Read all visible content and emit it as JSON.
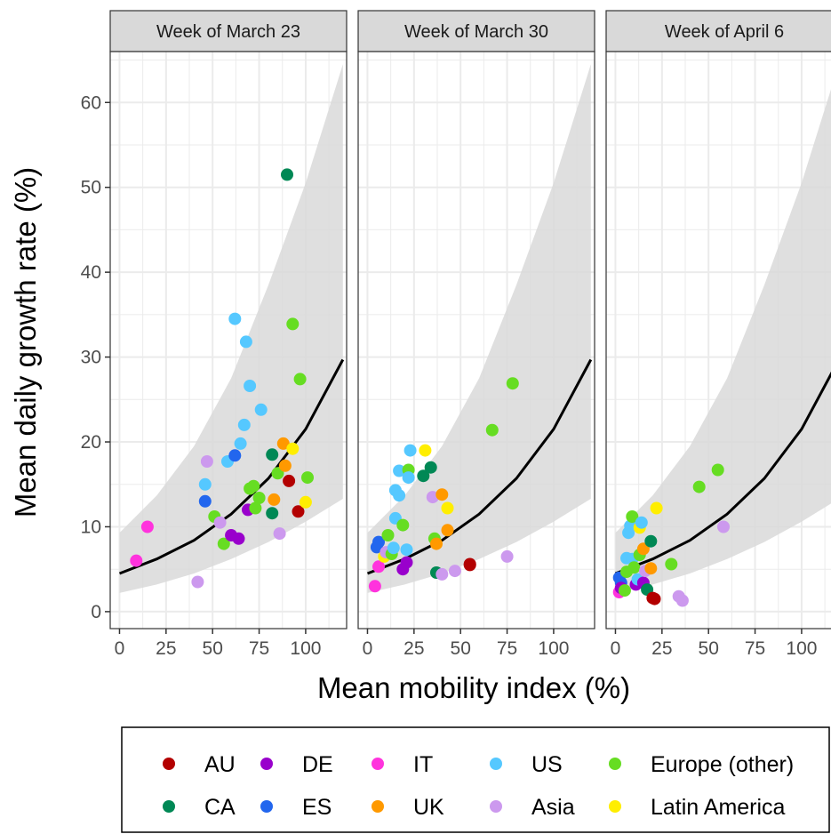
{
  "chart_data": {
    "type": "scatter",
    "xlabel": "Mean mobility index (%)",
    "ylabel": "Mean daily growth rate (%)",
    "xlim": [
      -5,
      122
    ],
    "ylim": [
      -2,
      66
    ],
    "x_ticks": [
      0,
      25,
      50,
      75,
      100
    ],
    "y_ticks": [
      0,
      10,
      20,
      30,
      40,
      50,
      60
    ],
    "grid": true,
    "legend_position": "bottom",
    "fit_curve": {
      "x": [
        0,
        20,
        40,
        60,
        80,
        100,
        120
      ],
      "y": [
        4.5,
        6.2,
        8.4,
        11.5,
        15.7,
        21.5,
        29.7
      ],
      "lower": [
        2.2,
        3.2,
        4.5,
        6.2,
        8.2,
        10.6,
        13.3
      ],
      "upper": [
        9.3,
        13.7,
        19.5,
        27.5,
        38.5,
        50.5,
        64.5
      ]
    },
    "facets": [
      {
        "title": "Week of March 23",
        "points": [
          {
            "g": "IT",
            "x": 9,
            "y": 6
          },
          {
            "g": "IT",
            "x": 15,
            "y": 10
          },
          {
            "g": "Asia",
            "x": 42,
            "y": 3.5
          },
          {
            "g": "US",
            "x": 46,
            "y": 15
          },
          {
            "g": "Asia",
            "x": 47,
            "y": 17.7
          },
          {
            "g": "ES",
            "x": 46,
            "y": 13
          },
          {
            "g": "Europe (other)",
            "x": 51,
            "y": 11.2
          },
          {
            "g": "Asia",
            "x": 54,
            "y": 10.5
          },
          {
            "g": "Europe (other)",
            "x": 56,
            "y": 8
          },
          {
            "g": "US",
            "x": 58,
            "y": 17.7
          },
          {
            "g": "DE",
            "x": 60,
            "y": 9
          },
          {
            "g": "DE",
            "x": 64,
            "y": 8.6
          },
          {
            "g": "ES",
            "x": 62,
            "y": 18.4
          },
          {
            "g": "US",
            "x": 62,
            "y": 34.5
          },
          {
            "g": "US",
            "x": 65,
            "y": 19.8
          },
          {
            "g": "US",
            "x": 67,
            "y": 22
          },
          {
            "g": "US",
            "x": 68,
            "y": 31.8
          },
          {
            "g": "US",
            "x": 70,
            "y": 26.6
          },
          {
            "g": "DE",
            "x": 69,
            "y": 12
          },
          {
            "g": "Europe (other)",
            "x": 70,
            "y": 14.5
          },
          {
            "g": "Europe (other)",
            "x": 72,
            "y": 14.8
          },
          {
            "g": "Europe (other)",
            "x": 73,
            "y": 12.2
          },
          {
            "g": "Europe (other)",
            "x": 75,
            "y": 13.4
          },
          {
            "g": "US",
            "x": 76,
            "y": 23.8
          },
          {
            "g": "CA",
            "x": 82,
            "y": 11.6
          },
          {
            "g": "CA",
            "x": 82,
            "y": 18.5
          },
          {
            "g": "UK",
            "x": 83,
            "y": 13.2
          },
          {
            "g": "Europe (other)",
            "x": 85,
            "y": 16.3
          },
          {
            "g": "Asia",
            "x": 86,
            "y": 9.2
          },
          {
            "g": "UK",
            "x": 88,
            "y": 19.8
          },
          {
            "g": "UK",
            "x": 89,
            "y": 17.2
          },
          {
            "g": "CA",
            "x": 90,
            "y": 51.5
          },
          {
            "g": "AU",
            "x": 91,
            "y": 15.4
          },
          {
            "g": "Europe (other)",
            "x": 93,
            "y": 33.9
          },
          {
            "g": "Latin America",
            "x": 93,
            "y": 19.2
          },
          {
            "g": "AU",
            "x": 96,
            "y": 11.8
          },
          {
            "g": "Europe (other)",
            "x": 97,
            "y": 27.4
          },
          {
            "g": "Latin America",
            "x": 100,
            "y": 12.9
          },
          {
            "g": "Europe (other)",
            "x": 101,
            "y": 15.8
          }
        ]
      },
      {
        "title": "Week of March 30",
        "points": [
          {
            "g": "IT",
            "x": 4,
            "y": 3
          },
          {
            "g": "IT",
            "x": 6,
            "y": 5.3
          },
          {
            "g": "ES",
            "x": 5,
            "y": 7.6
          },
          {
            "g": "ES",
            "x": 6,
            "y": 8.2
          },
          {
            "g": "Latin America",
            "x": 9,
            "y": 6.5
          },
          {
            "g": "Asia",
            "x": 10,
            "y": 7
          },
          {
            "g": "Europe (other)",
            "x": 11,
            "y": 9
          },
          {
            "g": "Europe (other)",
            "x": 13,
            "y": 6.8
          },
          {
            "g": "US",
            "x": 14,
            "y": 7.5
          },
          {
            "g": "US",
            "x": 15,
            "y": 11
          },
          {
            "g": "US",
            "x": 15,
            "y": 14.3
          },
          {
            "g": "US",
            "x": 17,
            "y": 13.7
          },
          {
            "g": "US",
            "x": 17,
            "y": 16.6
          },
          {
            "g": "Europe (other)",
            "x": 19,
            "y": 10.2
          },
          {
            "g": "DE",
            "x": 19,
            "y": 5
          },
          {
            "g": "DE",
            "x": 21,
            "y": 5.8
          },
          {
            "g": "US",
            "x": 21,
            "y": 7.3
          },
          {
            "g": "Europe (other)",
            "x": 22,
            "y": 16.7
          },
          {
            "g": "US",
            "x": 22,
            "y": 15.8
          },
          {
            "g": "US",
            "x": 23,
            "y": 19
          },
          {
            "g": "CA",
            "x": 30,
            "y": 16
          },
          {
            "g": "Latin America",
            "x": 31,
            "y": 19
          },
          {
            "g": "CA",
            "x": 34,
            "y": 17
          },
          {
            "g": "Asia",
            "x": 35,
            "y": 13.5
          },
          {
            "g": "Europe (other)",
            "x": 36,
            "y": 8.6
          },
          {
            "g": "UK",
            "x": 37,
            "y": 8
          },
          {
            "g": "CA",
            "x": 37,
            "y": 4.6
          },
          {
            "g": "Asia",
            "x": 40,
            "y": 4.4
          },
          {
            "g": "UK",
            "x": 40,
            "y": 13.8
          },
          {
            "g": "Latin America",
            "x": 43,
            "y": 12.2
          },
          {
            "g": "UK",
            "x": 43,
            "y": 9.6
          },
          {
            "g": "Asia",
            "x": 47,
            "y": 4.8
          },
          {
            "g": "AU",
            "x": 55,
            "y": 5.6
          },
          {
            "g": "AU",
            "x": 55,
            "y": 5.5
          },
          {
            "g": "Europe (other)",
            "x": 67,
            "y": 21.4
          },
          {
            "g": "Asia",
            "x": 75,
            "y": 6.5
          },
          {
            "g": "Europe (other)",
            "x": 78,
            "y": 26.9
          }
        ]
      },
      {
        "title": "Week of April 6",
        "points": [
          {
            "g": "IT",
            "x": 2,
            "y": 2.3
          },
          {
            "g": "ES",
            "x": 2,
            "y": 4
          },
          {
            "g": "ES",
            "x": 3,
            "y": 3.4
          },
          {
            "g": "DE",
            "x": 3,
            "y": 2.8
          },
          {
            "g": "Europe (other)",
            "x": 5,
            "y": 2.5
          },
          {
            "g": "Europe (other)",
            "x": 6,
            "y": 4.7
          },
          {
            "g": "US",
            "x": 6,
            "y": 6.3
          },
          {
            "g": "US",
            "x": 7,
            "y": 9.3
          },
          {
            "g": "US",
            "x": 8,
            "y": 10.1
          },
          {
            "g": "Europe (other)",
            "x": 9,
            "y": 11.2
          },
          {
            "g": "US",
            "x": 9,
            "y": 6.2
          },
          {
            "g": "Europe (other)",
            "x": 10,
            "y": 5.2
          },
          {
            "g": "DE",
            "x": 11,
            "y": 3.2
          },
          {
            "g": "US",
            "x": 12,
            "y": 3.8
          },
          {
            "g": "Latin America",
            "x": 13,
            "y": 9.9
          },
          {
            "g": "Europe (other)",
            "x": 13,
            "y": 6.7
          },
          {
            "g": "US",
            "x": 14,
            "y": 10.5
          },
          {
            "g": "UK",
            "x": 15,
            "y": 7.4
          },
          {
            "g": "DE",
            "x": 15,
            "y": 3.4
          },
          {
            "g": "Asia",
            "x": 16,
            "y": 4.8
          },
          {
            "g": "CA",
            "x": 17,
            "y": 2.6
          },
          {
            "g": "UK",
            "x": 19,
            "y": 5.1
          },
          {
            "g": "CA",
            "x": 19,
            "y": 8.3
          },
          {
            "g": "AU",
            "x": 20,
            "y": 1.6
          },
          {
            "g": "Latin America",
            "x": 22,
            "y": 12.2
          },
          {
            "g": "AU",
            "x": 21,
            "y": 1.5
          },
          {
            "g": "Europe (other)",
            "x": 30,
            "y": 5.6
          },
          {
            "g": "Asia",
            "x": 34,
            "y": 1.8
          },
          {
            "g": "Asia",
            "x": 36,
            "y": 1.3
          },
          {
            "g": "Europe (other)",
            "x": 45,
            "y": 14.7
          },
          {
            "g": "Europe (other)",
            "x": 55,
            "y": 16.7
          },
          {
            "g": "Asia",
            "x": 58,
            "y": 10
          }
        ]
      }
    ]
  },
  "legend": [
    {
      "label": "AU",
      "color": "#b30000"
    },
    {
      "label": "DE",
      "color": "#9900cc"
    },
    {
      "label": "IT",
      "color": "#ff33dd"
    },
    {
      "label": "US",
      "color": "#55c8ff"
    },
    {
      "label": "Europe (other)",
      "color": "#66dd22"
    },
    {
      "label": "CA",
      "color": "#008855"
    },
    {
      "label": "ES",
      "color": "#2266ee"
    },
    {
      "label": "UK",
      "color": "#ff9900"
    },
    {
      "label": "Asia",
      "color": "#cc99ee"
    },
    {
      "label": "Latin America",
      "color": "#ffee00"
    }
  ],
  "colors": {
    "band": "#d9d9d9",
    "strip_bg": "#d9d9d9",
    "grid": "#ebebeb",
    "curve": "#000000"
  }
}
